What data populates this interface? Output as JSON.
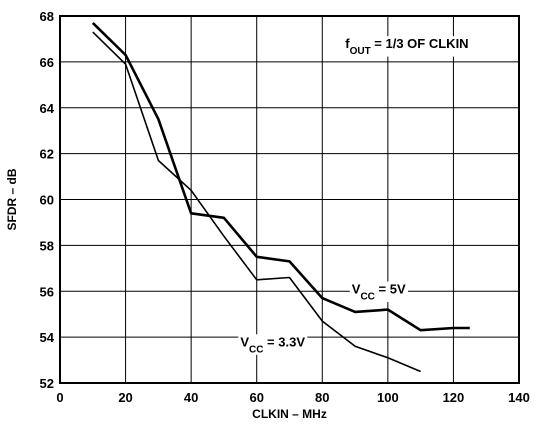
{
  "chart_data": {
    "type": "line",
    "title": "",
    "xlabel": "CLKIN – MHz",
    "ylabel": "SFDR – dB",
    "xlim": [
      0,
      140
    ],
    "ylim": [
      52,
      68
    ],
    "xticks": [
      0,
      20,
      40,
      60,
      80,
      100,
      120,
      140
    ],
    "yticks": [
      52,
      54,
      56,
      58,
      60,
      62,
      64,
      66,
      68
    ],
    "grid": true,
    "annotation": {
      "prefix": "f",
      "subscript": "OUT",
      "suffix": " = 1/3 OF CLKIN"
    },
    "series": [
      {
        "name": "VCC = 5V",
        "label": {
          "prefix": "V",
          "subscript": "CC",
          "suffix": " = 5V"
        },
        "x": [
          10,
          20,
          30,
          40,
          50,
          60,
          70,
          80,
          90,
          100,
          110,
          120,
          125
        ],
        "y": [
          67.7,
          66.3,
          63.5,
          59.4,
          59.2,
          57.5,
          57.3,
          55.7,
          55.1,
          55.2,
          54.3,
          54.4,
          54.4
        ]
      },
      {
        "name": "VCC = 3.3V",
        "label": {
          "prefix": "V",
          "subscript": "CC",
          "suffix": " = 3.3V"
        },
        "x": [
          10,
          20,
          30,
          40,
          50,
          60,
          70,
          80,
          90,
          100,
          110
        ],
        "y": [
          67.3,
          65.9,
          61.7,
          60.4,
          58.4,
          56.5,
          56.6,
          54.7,
          53.6,
          53.1,
          52.5
        ]
      }
    ]
  }
}
